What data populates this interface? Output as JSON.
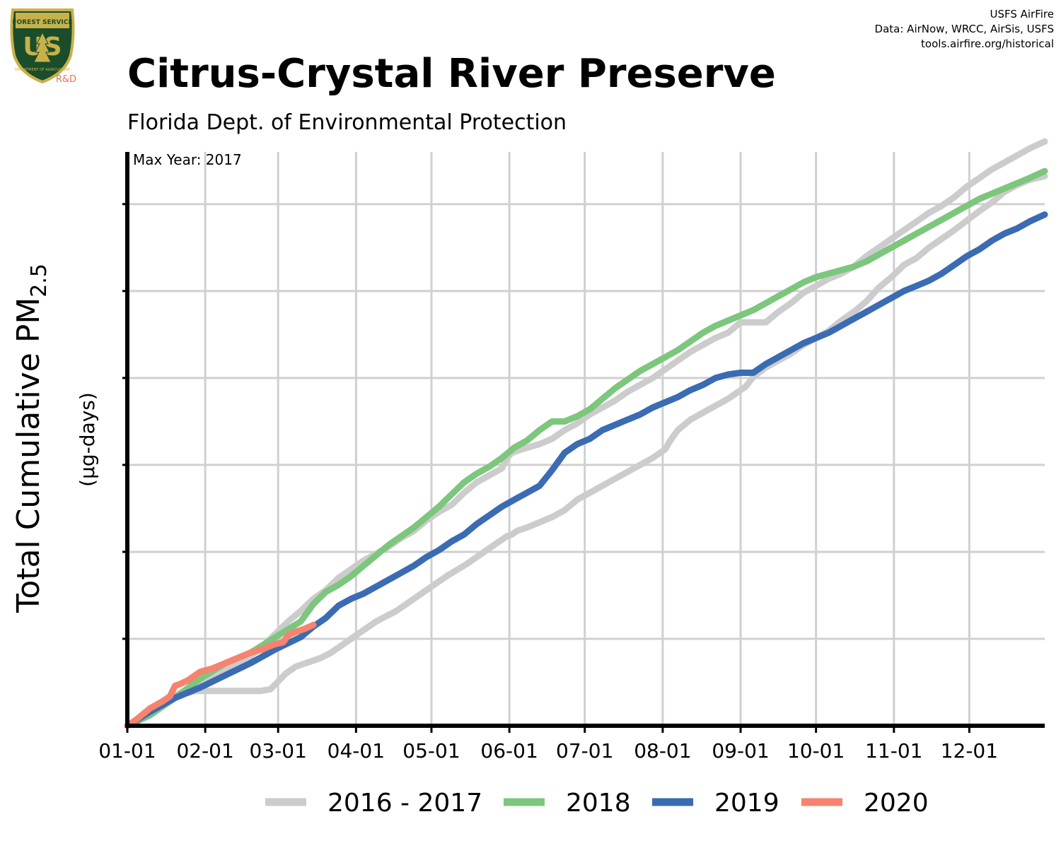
{
  "header": {
    "credits": [
      "USFS AirFire",
      "Data: AirNow, WRCC, AirSis, USFS",
      "tools.airfire.org/historical"
    ],
    "logo": {
      "text_forest_service": "FOREST SERVICE",
      "text_us": "US",
      "text_dept": "DEPARTMENT OF AGRICULTURE",
      "text_rd": "R&D"
    }
  },
  "chart_data": {
    "type": "line",
    "title": "Citrus-Crystal River Preserve",
    "subtitle": "Florida Dept. of Environmental Protection",
    "annotation": "Max Year: 2017",
    "ylabel_main": "Total Cumulative PM",
    "ylabel_sub": "2.5",
    "ylabel_units": "(µg-days)",
    "x_axis": {
      "unit": "day-of-year",
      "range": [
        1,
        366
      ],
      "ticks": [
        {
          "day": 1,
          "label": "01-01"
        },
        {
          "day": 32,
          "label": "02-01"
        },
        {
          "day": 61,
          "label": "03-01"
        },
        {
          "day": 92,
          "label": "04-01"
        },
        {
          "day": 122,
          "label": "05-01"
        },
        {
          "day": 153,
          "label": "06-01"
        },
        {
          "day": 183,
          "label": "07-01"
        },
        {
          "day": 214,
          "label": "08-01"
        },
        {
          "day": 245,
          "label": "09-01"
        },
        {
          "day": 275,
          "label": "10-01"
        },
        {
          "day": 306,
          "label": "11-01"
        },
        {
          "day": 336,
          "label": "12-01"
        }
      ]
    },
    "y_axis": {
      "range": [
        0,
        3300
      ],
      "gridlines": [
        500,
        1000,
        1500,
        2000,
        2500,
        3000
      ],
      "tick_labels_shown": false
    },
    "grid": true,
    "legend_position": "bottom",
    "colors": {
      "2016 - 2017": "#cccccc",
      "2018": "#7dc67d",
      "2019": "#3a6bb3",
      "2020": "#f7826f",
      "grid": "#d0d0d0",
      "axis": "#000000"
    },
    "series": [
      {
        "name": "2016 - 2017",
        "color": "#cccccc",
        "x": [
          1,
          10,
          20,
          28,
          30,
          50,
          54,
          58,
          64,
          68,
          74,
          78,
          82,
          87,
          92,
          96,
          100,
          104,
          108,
          112,
          116,
          120,
          124,
          128,
          132,
          136,
          140,
          144,
          148,
          152,
          154,
          156,
          160,
          165,
          170,
          175,
          180,
          185,
          190,
          195,
          200,
          205,
          210,
          215,
          217,
          220,
          225,
          230,
          235,
          240,
          245,
          247,
          250,
          255,
          260,
          265,
          270,
          275,
          280,
          285,
          290,
          295,
          300,
          305,
          310,
          315,
          320,
          325,
          330,
          335,
          340,
          345,
          350,
          355,
          360,
          366
        ],
        "y": [
          0,
          80,
          170,
          200,
          200,
          200,
          200,
          210,
          300,
          340,
          370,
          390,
          420,
          470,
          520,
          560,
          600,
          630,
          660,
          700,
          740,
          780,
          820,
          860,
          895,
          930,
          970,
          1010,
          1050,
          1090,
          1100,
          1120,
          1140,
          1170,
          1200,
          1240,
          1300,
          1340,
          1380,
          1420,
          1460,
          1500,
          1540,
          1590,
          1640,
          1700,
          1760,
          1800,
          1840,
          1880,
          1930,
          1950,
          2005,
          2060,
          2100,
          2140,
          2190,
          2230,
          2270,
          2330,
          2380,
          2440,
          2520,
          2580,
          2650,
          2690,
          2750,
          2800,
          2850,
          2905,
          2960,
          3010,
          3070,
          3110,
          3140,
          3160
        ]
      },
      {
        "name": "2016 - 2017",
        "color": "#cccccc",
        "x": [
          1,
          10,
          20,
          30,
          40,
          50,
          55,
          60,
          65,
          70,
          75,
          80,
          85,
          90,
          95,
          100,
          105,
          110,
          115,
          120,
          125,
          130,
          135,
          140,
          145,
          150,
          152,
          154,
          158,
          165,
          170,
          175,
          180,
          185,
          190,
          195,
          200,
          205,
          210,
          215,
          220,
          225,
          230,
          235,
          240,
          245,
          250,
          255,
          260,
          265,
          270,
          275,
          280,
          285,
          290,
          295,
          300,
          305,
          310,
          315,
          320,
          325,
          330,
          335,
          340,
          345,
          350,
          355,
          360,
          366
        ],
        "y": [
          0,
          80,
          170,
          260,
          330,
          400,
          460,
          530,
          600,
          660,
          730,
          780,
          850,
          900,
          950,
          990,
          1030,
          1080,
          1120,
          1180,
          1230,
          1270,
          1340,
          1400,
          1440,
          1480,
          1540,
          1570,
          1590,
          1620,
          1650,
          1700,
          1740,
          1790,
          1830,
          1870,
          1920,
          1960,
          2000,
          2050,
          2100,
          2150,
          2190,
          2230,
          2260,
          2320,
          2320,
          2320,
          2380,
          2430,
          2490,
          2530,
          2570,
          2600,
          2640,
          2700,
          2750,
          2800,
          2850,
          2900,
          2950,
          2990,
          3040,
          3100,
          3150,
          3200,
          3240,
          3280,
          3320,
          3360
        ]
      },
      {
        "name": "2018",
        "color": "#7dc67d",
        "x": [
          1,
          10,
          20,
          30,
          40,
          50,
          60,
          70,
          75,
          80,
          85,
          90,
          95,
          100,
          105,
          110,
          115,
          120,
          125,
          130,
          135,
          140,
          145,
          150,
          155,
          160,
          165,
          170,
          175,
          180,
          185,
          190,
          195,
          200,
          205,
          210,
          215,
          220,
          225,
          230,
          235,
          240,
          245,
          250,
          255,
          260,
          265,
          270,
          275,
          280,
          285,
          290,
          295,
          300,
          305,
          310,
          315,
          320,
          325,
          330,
          335,
          340,
          345,
          350,
          355,
          360,
          366
        ],
        "y": [
          0,
          60,
          160,
          270,
          360,
          420,
          510,
          600,
          700,
          770,
          810,
          860,
          920,
          980,
          1040,
          1090,
          1140,
          1200,
          1260,
          1330,
          1400,
          1450,
          1490,
          1540,
          1600,
          1640,
          1700,
          1750,
          1750,
          1780,
          1820,
          1880,
          1940,
          1990,
          2040,
          2080,
          2120,
          2160,
          2210,
          2260,
          2300,
          2330,
          2360,
          2390,
          2430,
          2470,
          2510,
          2550,
          2580,
          2600,
          2620,
          2640,
          2670,
          2710,
          2750,
          2790,
          2830,
          2870,
          2910,
          2950,
          2990,
          3030,
          3060,
          3090,
          3120,
          3150,
          3190
        ]
      },
      {
        "name": "2019",
        "color": "#3a6bb3",
        "x": [
          1,
          10,
          20,
          30,
          40,
          50,
          60,
          70,
          75,
          80,
          85,
          90,
          95,
          100,
          105,
          110,
          115,
          120,
          125,
          130,
          135,
          140,
          145,
          150,
          155,
          160,
          165,
          170,
          175,
          180,
          185,
          190,
          195,
          200,
          205,
          210,
          215,
          220,
          225,
          230,
          235,
          240,
          245,
          250,
          255,
          260,
          265,
          270,
          275,
          280,
          285,
          290,
          295,
          300,
          305,
          310,
          315,
          320,
          325,
          330,
          335,
          340,
          345,
          350,
          355,
          360,
          366
        ],
        "y": [
          0,
          80,
          160,
          220,
          290,
          360,
          440,
          510,
          570,
          620,
          690,
          730,
          760,
          800,
          840,
          880,
          920,
          970,
          1010,
          1060,
          1100,
          1160,
          1210,
          1260,
          1300,
          1340,
          1380,
          1470,
          1570,
          1620,
          1650,
          1700,
          1730,
          1760,
          1790,
          1830,
          1860,
          1890,
          1930,
          1960,
          2000,
          2020,
          2030,
          2030,
          2080,
          2120,
          2160,
          2200,
          2230,
          2260,
          2300,
          2340,
          2380,
          2420,
          2460,
          2500,
          2530,
          2560,
          2600,
          2650,
          2700,
          2740,
          2790,
          2830,
          2860,
          2900,
          2940
        ]
      },
      {
        "name": "2020",
        "color": "#f7826f",
        "x": [
          1,
          5,
          10,
          15,
          18,
          20,
          22,
          25,
          28,
          30,
          35,
          40,
          45,
          50,
          55,
          58,
          60,
          63,
          65,
          68,
          72,
          75
        ],
        "y": [
          0,
          40,
          100,
          140,
          170,
          230,
          240,
          260,
          290,
          310,
          330,
          360,
          390,
          420,
          440,
          460,
          470,
          480,
          520,
          540,
          560,
          580
        ]
      }
    ],
    "legend": [
      {
        "label": "2016 - 2017",
        "color": "#cccccc"
      },
      {
        "label": "2018",
        "color": "#7dc67d"
      },
      {
        "label": "2019",
        "color": "#3a6bb3"
      },
      {
        "label": "2020",
        "color": "#f7826f"
      }
    ]
  }
}
